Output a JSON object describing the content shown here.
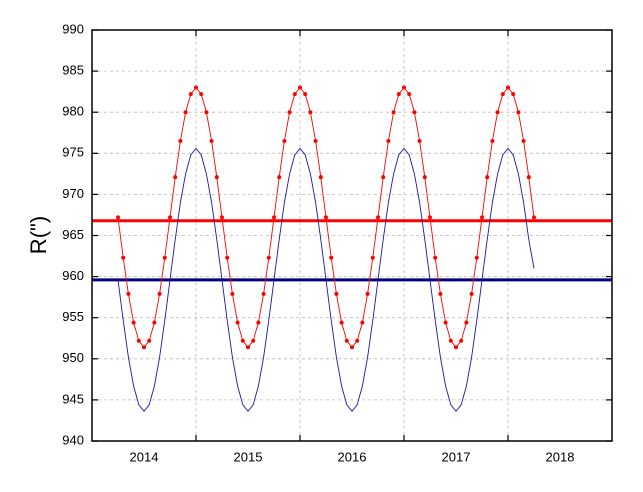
{
  "chart_data": {
    "type": "line",
    "ylabel": "R(\")",
    "x": [
      2014.25,
      2014.3,
      2014.35,
      2014.4,
      2014.45,
      2014.5,
      2014.55,
      2014.6,
      2014.65,
      2014.7,
      2014.75,
      2014.8,
      2014.85,
      2014.9,
      2014.95,
      2015.0,
      2015.05,
      2015.1,
      2015.15,
      2015.2,
      2015.25,
      2015.3,
      2015.35,
      2015.4,
      2015.45,
      2015.5,
      2015.55,
      2015.6,
      2015.65,
      2015.7,
      2015.75,
      2015.8,
      2015.85,
      2015.9,
      2015.95,
      2016.0,
      2016.05,
      2016.1,
      2016.15,
      2016.2,
      2016.25,
      2016.3,
      2016.35,
      2016.4,
      2016.45,
      2016.5,
      2016.55,
      2016.6,
      2016.65,
      2016.7,
      2016.75,
      2016.8,
      2016.85,
      2016.9,
      2016.95,
      2017.0,
      2017.05,
      2017.1,
      2017.15,
      2017.2,
      2017.25,
      2017.3,
      2017.35,
      2017.4,
      2017.45,
      2017.5,
      2017.55,
      2017.6,
      2017.65,
      2017.7,
      2017.75,
      2017.8,
      2017.85,
      2017.9,
      2017.95,
      2018.0,
      2018.05,
      2018.1,
      2018.15,
      2018.2,
      2018.25
    ],
    "series": [
      {
        "color": "#ff0000",
        "markers": true,
        "values": [
          967.2,
          962.3,
          957.9,
          954.4,
          952.2,
          951.4,
          952.2,
          954.4,
          957.9,
          962.3,
          967.2,
          972.1,
          976.5,
          980.0,
          982.2,
          983.0,
          982.2,
          980.0,
          976.5,
          972.1,
          967.2,
          962.3,
          957.9,
          954.4,
          952.2,
          951.4,
          952.2,
          954.4,
          957.9,
          962.3,
          967.2,
          972.1,
          976.5,
          980.0,
          982.2,
          983.0,
          982.2,
          980.0,
          976.5,
          972.1,
          967.2,
          962.3,
          957.9,
          954.4,
          952.2,
          951.4,
          952.2,
          954.4,
          957.9,
          962.3,
          967.2,
          972.1,
          976.5,
          980.0,
          982.2,
          983.0,
          982.2,
          980.0,
          976.5,
          972.1,
          967.2,
          962.3,
          957.9,
          954.4,
          952.2,
          951.4,
          952.2,
          954.4,
          957.9,
          962.3,
          967.2,
          972.1,
          976.5,
          980.0,
          982.2,
          983.0,
          982.2,
          980.0,
          976.5,
          972.1,
          967.2
        ]
      },
      {
        "color": "#1a1a9c",
        "markers": false,
        "values": [
          959.6,
          954.7,
          950.2,
          946.7,
          944.4,
          943.6,
          944.4,
          946.7,
          950.2,
          954.7,
          959.6,
          964.5,
          969.0,
          972.5,
          974.8,
          975.6,
          974.8,
          972.5,
          969.0,
          964.5,
          959.6,
          954.7,
          950.2,
          946.7,
          944.4,
          943.6,
          944.4,
          946.7,
          950.2,
          954.7,
          959.6,
          964.5,
          969.0,
          972.5,
          974.8,
          975.6,
          974.8,
          972.5,
          969.0,
          964.5,
          959.6,
          954.7,
          950.2,
          946.7,
          944.4,
          943.6,
          944.4,
          946.7,
          950.2,
          954.7,
          959.6,
          964.5,
          969.0,
          972.5,
          974.8,
          975.6,
          974.8,
          972.5,
          969.0,
          964.5,
          959.6,
          954.7,
          950.2,
          946.7,
          944.4,
          943.6,
          944.4,
          946.7,
          950.2,
          954.7,
          959.6,
          964.5,
          969.0,
          972.5,
          974.8,
          975.6,
          974.8,
          972.5,
          969.0,
          964.5,
          961.0
        ]
      }
    ],
    "reference_lines": [
      {
        "value": 966.8,
        "color": "#ff0000"
      },
      {
        "value": 959.6,
        "color": "#000080"
      }
    ],
    "xlim": [
      2014,
      2019
    ],
    "xticks": [
      {
        "value": 2014.5,
        "label": "2014"
      },
      {
        "value": 2015.5,
        "label": "2015"
      },
      {
        "value": 2016.5,
        "label": "2016"
      },
      {
        "value": 2017.5,
        "label": "2017"
      },
      {
        "value": 2018.5,
        "label": "2018"
      }
    ],
    "xgrid": [
      2015,
      2016,
      2017,
      2018
    ],
    "ylim": [
      940,
      990
    ],
    "yticks": [
      940,
      945,
      950,
      955,
      960,
      965,
      970,
      975,
      980,
      985,
      990
    ],
    "grid": true
  }
}
